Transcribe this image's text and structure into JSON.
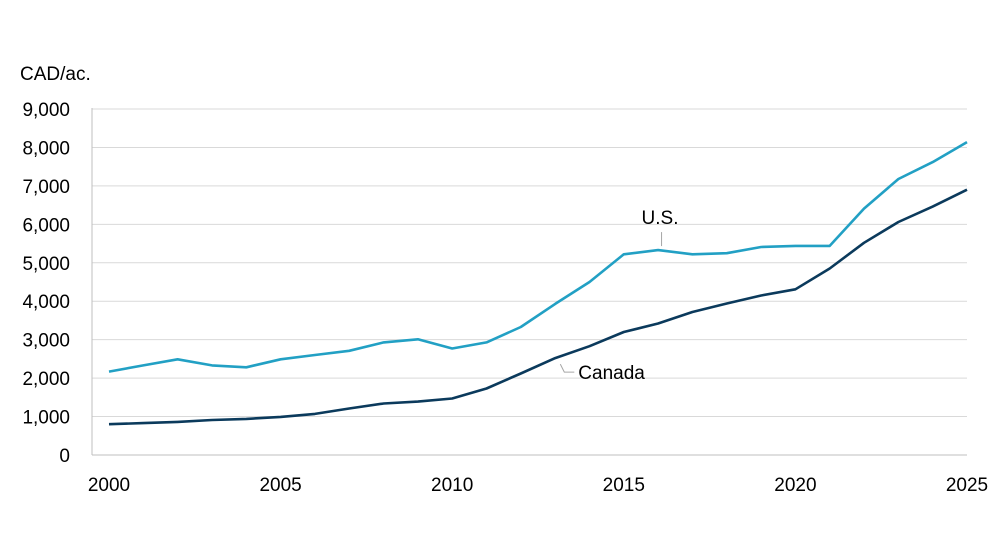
{
  "chart_data": {
    "type": "line",
    "title": "",
    "unit_label": "CAD/ac.",
    "xlabel": "",
    "ylabel": "",
    "xlim": [
      2000,
      2025
    ],
    "ylim": [
      0,
      9000
    ],
    "x_ticks": [
      2000,
      2005,
      2010,
      2015,
      2020,
      2025
    ],
    "y_ticks": [
      0,
      1000,
      2000,
      3000,
      4000,
      5000,
      6000,
      7000,
      8000,
      9000
    ],
    "y_tick_labels": [
      "0",
      "1,000",
      "2,000",
      "3,000",
      "4,000",
      "5,000",
      "6,000",
      "7,000",
      "8,000",
      "9,000"
    ],
    "grid": true,
    "x": [
      2000,
      2001,
      2002,
      2003,
      2004,
      2005,
      2006,
      2007,
      2008,
      2009,
      2010,
      2011,
      2012,
      2013,
      2014,
      2015,
      2016,
      2017,
      2018,
      2019,
      2020,
      2021,
      2022,
      2023,
      2024,
      2025
    ],
    "series": [
      {
        "name": "U.S.",
        "color": "#22a0c4",
        "values": [
          2170,
          2330,
          2490,
          2330,
          2280,
          2490,
          2600,
          2710,
          2930,
          3010,
          2770,
          2930,
          3330,
          3930,
          4500,
          5220,
          5330,
          5220,
          5250,
          5410,
          5440,
          5440,
          6410,
          7180,
          7620,
          8140
        ]
      },
      {
        "name": "Canada",
        "color": "#0b3a5c",
        "values": [
          800,
          830,
          860,
          910,
          940,
          990,
          1070,
          1210,
          1340,
          1390,
          1470,
          1730,
          2120,
          2520,
          2830,
          3200,
          3420,
          3720,
          3940,
          4150,
          4310,
          4850,
          5520,
          6060,
          6460,
          6900
        ]
      }
    ]
  }
}
